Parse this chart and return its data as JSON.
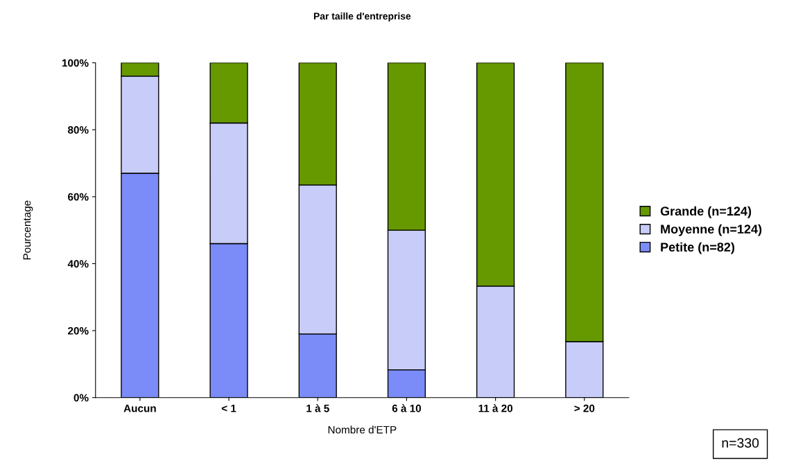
{
  "chart_data": {
    "type": "bar",
    "title": "Par taille d'entreprise",
    "xlabel": "Nombre d'ETP",
    "ylabel": "Pourcentage",
    "categories": [
      "Aucun",
      "< 1",
      "1 à 5",
      "6 à 10",
      "11 à 20",
      "> 20"
    ],
    "stacked": true,
    "series": [
      {
        "name": "Petite (n=82)",
        "color": "#7b8cf8",
        "values": [
          67,
          46,
          19,
          8.3,
          0,
          0
        ]
      },
      {
        "name": "Moyenne (n=124)",
        "color": "#c8ccf8",
        "values": [
          29,
          36,
          44.5,
          41.7,
          33.3,
          16.7
        ]
      },
      {
        "name": "Grande (n=124)",
        "color": "#669900",
        "values": [
          4,
          18,
          36.5,
          50,
          66.7,
          83.3
        ]
      }
    ],
    "ylim": [
      0,
      100
    ],
    "yticks": [
      {
        "value": 0,
        "label": "0%"
      },
      {
        "value": 20,
        "label": "20%"
      },
      {
        "value": 40,
        "label": "40%"
      },
      {
        "value": 60,
        "label": "60%"
      },
      {
        "value": 80,
        "label": "80%"
      },
      {
        "value": 100,
        "label": "100%"
      }
    ],
    "grid": false,
    "legend": "right",
    "annotations": [
      "n=330"
    ]
  }
}
